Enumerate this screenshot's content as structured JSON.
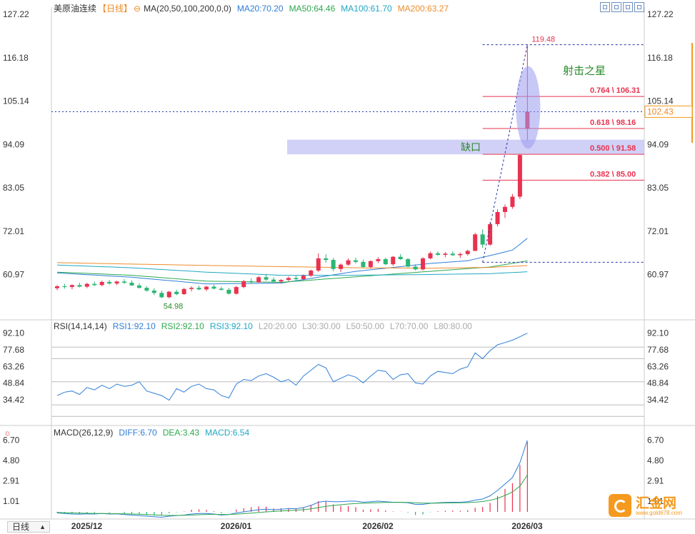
{
  "header": {
    "symbol": "美原油连续",
    "period": "【日线】",
    "ma_label": "MA(20,50,100,200,0,0)",
    "ma": [
      {
        "label": "MA20:70.20",
        "color": "#2f7ed8"
      },
      {
        "label": "MA50:64.46",
        "color": "#2ca84d"
      },
      {
        "label": "MA100:61.70",
        "color": "#20a7c4"
      },
      {
        "label": "MA200:63.27",
        "color": "#ef8c2b"
      }
    ]
  },
  "rsi_header": {
    "label": "RSI(14,14,14)",
    "items": [
      {
        "label": "RSI1:92.10",
        "color": "#2f7ed8"
      },
      {
        "label": "RSI2:92.10",
        "color": "#2ca84d"
      },
      {
        "label": "RSI3:92.10",
        "color": "#20a7c4"
      },
      {
        "label": "L20:20.00",
        "color": "#aaaaaa"
      },
      {
        "label": "L30:30.00",
        "color": "#aaaaaa"
      },
      {
        "label": "L50:50.00",
        "color": "#aaaaaa"
      },
      {
        "label": "L70:70.00",
        "color": "#aaaaaa"
      },
      {
        "label": "L80:80.00",
        "color": "#aaaaaa"
      }
    ]
  },
  "macd_header": {
    "label": "MACD(26,12,9)",
    "items": [
      {
        "label": "DIFF:6.70",
        "color": "#2f7ed8"
      },
      {
        "label": "DEA:3.43",
        "color": "#2ca84d"
      },
      {
        "label": "MACD:6.54",
        "color": "#20a7c4"
      }
    ]
  },
  "period_button": "日线",
  "logo": {
    "name": "汇金网",
    "url": "www.gold678.com"
  },
  "colors": {
    "up": "#e8324f",
    "down": "#2bb673",
    "fib": "#e8324f",
    "grid": "#dddddd",
    "axis_text": "#333333"
  },
  "chart_data": {
    "type": "candlestick",
    "price_axis": {
      "ticks": [
        127.22,
        116.18,
        105.14,
        94.09,
        83.05,
        72.01,
        60.97
      ],
      "min": 50.0,
      "max": 127.22
    },
    "current_price": "102.43",
    "x_labels": [
      {
        "label": "2025/12",
        "index": 4
      },
      {
        "label": "2026/01",
        "index": 24
      },
      {
        "label": "2026/02",
        "index": 43
      },
      {
        "label": "2026/03",
        "index": 63
      }
    ],
    "ohlc": [
      [
        57.5,
        58.3,
        57.0,
        58.0
      ],
      [
        58.0,
        58.6,
        57.4,
        57.8
      ],
      [
        57.8,
        58.5,
        57.2,
        58.3
      ],
      [
        58.3,
        58.9,
        57.7,
        57.9
      ],
      [
        57.9,
        58.9,
        57.5,
        58.6
      ],
      [
        58.6,
        59.2,
        58.0,
        58.3
      ],
      [
        58.3,
        59.4,
        58.0,
        59.1
      ],
      [
        59.1,
        59.6,
        58.4,
        58.7
      ],
      [
        58.7,
        59.4,
        58.3,
        59.2
      ],
      [
        59.2,
        59.8,
        58.6,
        58.9
      ],
      [
        58.9,
        59.5,
        58.1,
        58.2
      ],
      [
        58.2,
        58.8,
        57.4,
        57.6
      ],
      [
        57.6,
        58.0,
        56.6,
        56.9
      ],
      [
        56.9,
        57.5,
        55.8,
        56.3
      ],
      [
        56.3,
        56.9,
        54.98,
        55.2
      ],
      [
        55.2,
        56.8,
        54.98,
        56.6
      ],
      [
        56.6,
        57.1,
        55.7,
        56.0
      ],
      [
        56.0,
        57.6,
        55.8,
        57.3
      ],
      [
        57.3,
        58.0,
        56.7,
        57.6
      ],
      [
        57.6,
        58.2,
        57.0,
        57.2
      ],
      [
        57.2,
        58.1,
        56.8,
        57.9
      ],
      [
        57.9,
        58.4,
        57.2,
        57.4
      ],
      [
        57.4,
        57.9,
        56.9,
        57.1
      ],
      [
        57.1,
        57.6,
        55.9,
        56.1
      ],
      [
        56.1,
        58.1,
        55.9,
        57.8
      ],
      [
        57.8,
        59.6,
        57.5,
        59.3
      ],
      [
        59.3,
        60.0,
        58.6,
        59.0
      ],
      [
        59.0,
        60.6,
        58.9,
        60.3
      ],
      [
        60.3,
        61.2,
        59.4,
        59.7
      ],
      [
        59.7,
        60.3,
        59.0,
        59.2
      ],
      [
        59.2,
        59.8,
        58.7,
        59.6
      ],
      [
        59.6,
        60.5,
        59.3,
        60.1
      ],
      [
        60.1,
        60.8,
        59.4,
        59.8
      ],
      [
        59.8,
        61.0,
        59.5,
        60.7
      ],
      [
        60.7,
        62.2,
        60.4,
        62.0
      ],
      [
        62.0,
        66.4,
        61.6,
        65.1
      ],
      [
        65.1,
        66.2,
        64.0,
        64.7
      ],
      [
        64.7,
        65.2,
        61.8,
        62.4
      ],
      [
        62.4,
        63.8,
        61.6,
        63.5
      ],
      [
        63.5,
        65.1,
        63.2,
        64.6
      ],
      [
        64.6,
        65.3,
        63.8,
        64.2
      ],
      [
        64.2,
        64.8,
        62.7,
        62.9
      ],
      [
        62.9,
        64.6,
        62.5,
        64.4
      ],
      [
        64.4,
        65.4,
        63.9,
        64.9
      ],
      [
        64.9,
        65.3,
        63.4,
        63.6
      ],
      [
        63.6,
        65.7,
        63.2,
        65.5
      ],
      [
        65.5,
        66.2,
        64.7,
        64.9
      ],
      [
        64.9,
        65.2,
        62.8,
        63.0
      ],
      [
        63.0,
        63.6,
        62.0,
        62.3
      ],
      [
        62.3,
        65.4,
        62.0,
        65.1
      ],
      [
        65.1,
        66.8,
        64.9,
        66.4
      ],
      [
        66.4,
        66.9,
        65.7,
        66.0
      ],
      [
        66.0,
        66.7,
        65.4,
        66.3
      ],
      [
        66.3,
        66.9,
        65.7,
        65.9
      ],
      [
        65.9,
        66.6,
        65.2,
        66.2
      ],
      [
        66.2,
        67.3,
        65.8,
        67.0
      ],
      [
        67.0,
        71.6,
        67.0,
        71.2
      ],
      [
        71.2,
        72.5,
        67.8,
        68.6
      ],
      [
        68.6,
        74.4,
        68.3,
        73.8
      ],
      [
        73.8,
        77.6,
        73.2,
        76.9
      ],
      [
        76.9,
        78.8,
        75.4,
        78.2
      ],
      [
        78.2,
        81.5,
        77.7,
        80.8
      ],
      [
        80.8,
        91.5,
        80.2,
        91.4
      ],
      [
        98.16,
        119.48,
        94.8,
        102.43
      ]
    ],
    "low_label": "54.98",
    "high_label": "119.48",
    "fib_levels": [
      {
        "label": "0.764 \\ 106.31",
        "value": 106.31
      },
      {
        "label": "0.618 \\ 98.16",
        "value": 98.16
      },
      {
        "label": "0.500 \\ 91.58",
        "value": 91.58
      },
      {
        "label": "0.382 \\ 85.00",
        "value": 85.0
      }
    ],
    "fib_range": {
      "low": 64.1,
      "high": 119.48
    },
    "gap_zone": {
      "from": 91.58,
      "to": 95.3,
      "label": "缺口"
    },
    "annotation": "射击之星",
    "moving_averages": [
      {
        "name": "MA20",
        "color": "#2f7ed8",
        "keys": [
          [
            0,
            61.4
          ],
          [
            10,
            60.3
          ],
          [
            20,
            58.6
          ],
          [
            30,
            58.8
          ],
          [
            40,
            61.8
          ],
          [
            50,
            63.8
          ],
          [
            55,
            64.5
          ],
          [
            58,
            65.8
          ],
          [
            61,
            67.2
          ],
          [
            63,
            70.2
          ]
        ]
      },
      {
        "name": "MA50",
        "color": "#2ca84d",
        "keys": [
          [
            0,
            61.6
          ],
          [
            10,
            60.8
          ],
          [
            20,
            59.3
          ],
          [
            30,
            59.0
          ],
          [
            40,
            60.4
          ],
          [
            50,
            61.8
          ],
          [
            58,
            62.9
          ],
          [
            63,
            64.46
          ]
        ]
      },
      {
        "name": "MA100",
        "color": "#20a7c4",
        "keys": [
          [
            0,
            63.4
          ],
          [
            10,
            62.7
          ],
          [
            20,
            61.6
          ],
          [
            30,
            60.8
          ],
          [
            40,
            60.8
          ],
          [
            50,
            61.0
          ],
          [
            58,
            61.2
          ],
          [
            63,
            61.7
          ]
        ]
      },
      {
        "name": "MA200",
        "color": "#ef8c2b",
        "keys": [
          [
            0,
            64.0
          ],
          [
            20,
            63.3
          ],
          [
            40,
            62.7
          ],
          [
            50,
            62.6
          ],
          [
            58,
            62.8
          ],
          [
            63,
            63.27
          ]
        ]
      }
    ],
    "rsi": {
      "ticks": [
        92.1,
        77.68,
        63.26,
        48.84,
        34.42
      ],
      "gridlines": [
        80,
        70,
        50,
        30,
        20
      ],
      "min": 22,
      "max": 95,
      "values": [
        38,
        41,
        42,
        39,
        45,
        43,
        47,
        44,
        48,
        46,
        47,
        50,
        42,
        40,
        38,
        34,
        44,
        41,
        46,
        48,
        44,
        43,
        38,
        36,
        48,
        52,
        51,
        55,
        57,
        54,
        50,
        52,
        47,
        55,
        60,
        65,
        62,
        50,
        53,
        56,
        54,
        49,
        55,
        60,
        59,
        52,
        56,
        57,
        49,
        48,
        55,
        59,
        58,
        57,
        61,
        63,
        75,
        70,
        77,
        82,
        84,
        86,
        89,
        92.1
      ]
    },
    "macd": {
      "ticks": [
        6.7,
        4.8,
        2.91,
        1.01
      ],
      "min": -0.6,
      "max": 7.0,
      "diff": [
        -0.1,
        -0.15,
        -0.2,
        -0.22,
        -0.18,
        -0.2,
        -0.15,
        -0.2,
        -0.18,
        -0.25,
        -0.3,
        -0.35,
        -0.4,
        -0.45,
        -0.5,
        -0.4,
        -0.35,
        -0.3,
        -0.2,
        -0.15,
        -0.15,
        -0.2,
        -0.3,
        -0.25,
        -0.1,
        0.0,
        0.1,
        0.2,
        0.25,
        0.2,
        0.25,
        0.3,
        0.3,
        0.4,
        0.6,
        0.9,
        1.0,
        0.95,
        0.95,
        1.0,
        1.0,
        0.9,
        0.95,
        1.0,
        0.95,
        0.9,
        0.9,
        0.85,
        0.7,
        0.7,
        0.8,
        0.85,
        0.88,
        0.9,
        0.9,
        0.95,
        1.1,
        1.2,
        1.5,
        2.0,
        2.6,
        3.2,
        4.6,
        6.7
      ],
      "dea": [
        -0.05,
        -0.08,
        -0.1,
        -0.12,
        -0.13,
        -0.15,
        -0.15,
        -0.16,
        -0.17,
        -0.18,
        -0.2,
        -0.22,
        -0.25,
        -0.28,
        -0.32,
        -0.33,
        -0.33,
        -0.32,
        -0.3,
        -0.27,
        -0.24,
        -0.23,
        -0.24,
        -0.24,
        -0.21,
        -0.17,
        -0.12,
        -0.06,
        0.0,
        0.04,
        0.08,
        0.12,
        0.16,
        0.2,
        0.28,
        0.4,
        0.52,
        0.6,
        0.67,
        0.73,
        0.78,
        0.8,
        0.83,
        0.86,
        0.88,
        0.88,
        0.89,
        0.88,
        0.85,
        0.82,
        0.82,
        0.82,
        0.83,
        0.84,
        0.85,
        0.87,
        0.91,
        0.97,
        1.08,
        1.26,
        1.53,
        1.86,
        2.41,
        3.43
      ]
    }
  }
}
